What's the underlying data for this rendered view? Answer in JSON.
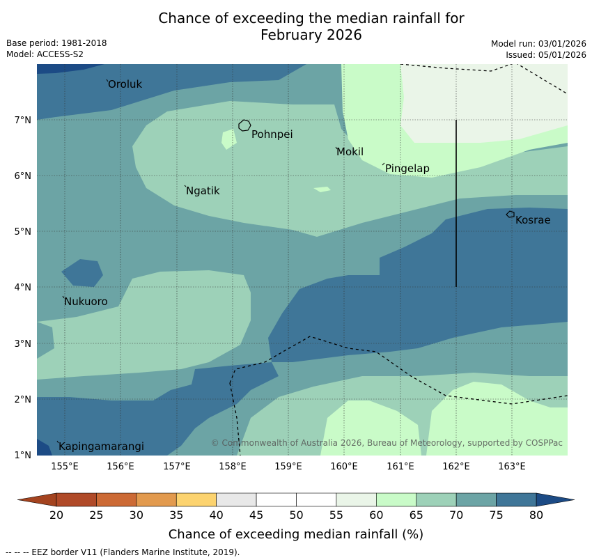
{
  "header": {
    "title_line1": "Chance of exceeding the median rainfall for",
    "title_line2": "February 2026",
    "base_period": "Base period: 1981-2018",
    "model": "Model: ACCESS-S2",
    "model_run": "Model run: 03/01/2026",
    "issued": "Issued: 05/01/2026"
  },
  "map": {
    "lon_ticks": [
      "155°E",
      "156°E",
      "157°E",
      "158°E",
      "159°E",
      "160°E",
      "161°E",
      "162°E",
      "163°E"
    ],
    "lat_ticks": [
      "7°N",
      "6°N",
      "5°N",
      "4°N",
      "3°N",
      "2°N",
      "1°N"
    ],
    "places": [
      "Oroluk",
      "Pohnpei",
      "Mokil",
      "Pingelap",
      "Ngatik",
      "Kosrae",
      "Nukuoro",
      "Kapingamarangi"
    ],
    "copyright": "© Commonwealth of Australia 2026, Bureau of Meteorology, supported by COSPPac"
  },
  "colorbar": {
    "ticks": [
      "20",
      "25",
      "30",
      "35",
      "40",
      "45",
      "50",
      "55",
      "60",
      "65",
      "70",
      "75",
      "80"
    ],
    "colors": [
      "#b04a28",
      "#cc6a35",
      "#e29a4e",
      "#fcd36f",
      "#e8e8e8",
      "#ffffff",
      "#ffffff",
      "#eaf5e8",
      "#c9fbc8",
      "#9dd1b8",
      "#6ca4a5",
      "#3f7698"
    ],
    "low_extend_color": "#a4431f",
    "high_extend_color": "#1c4b85",
    "label": "Chance of exceeding median rainfall (%)"
  },
  "footer": {
    "eez_note": "--  --  -- EEZ border V11 (Flanders Marine Institute, 2019)."
  }
}
